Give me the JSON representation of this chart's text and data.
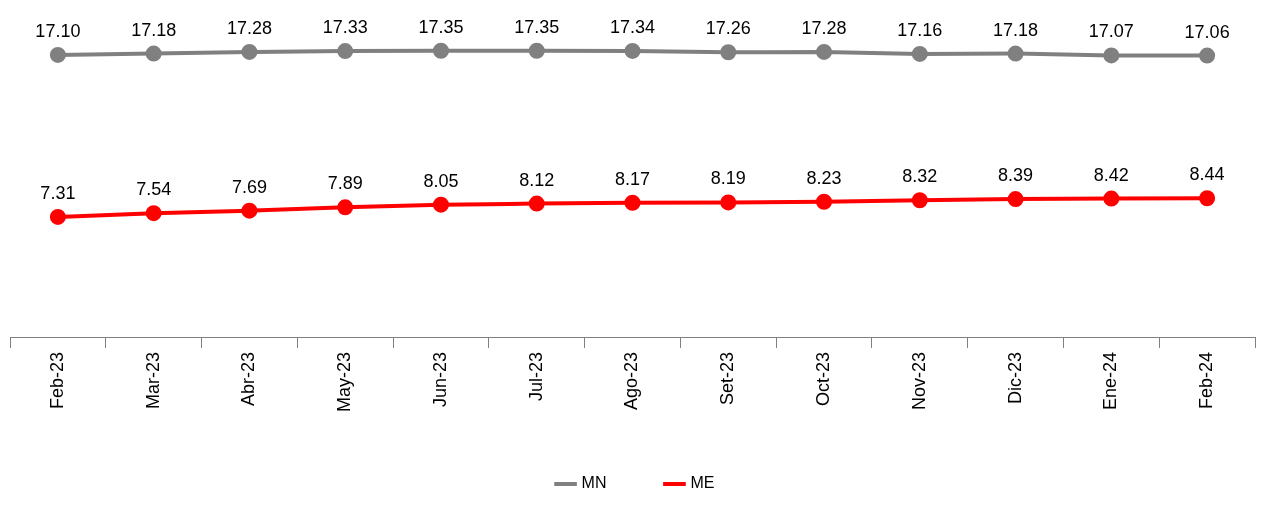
{
  "chart_data": {
    "type": "line",
    "categories": [
      "Feb-23",
      "Mar-23",
      "Abr-23",
      "May-23",
      "Jun-23",
      "Jul-23",
      "Ago-23",
      "Set-23",
      "Oct-23",
      "Nov-23",
      "Dic-23",
      "Ene-24",
      "Feb-24"
    ],
    "series": [
      {
        "name": "MN",
        "color": "#808080",
        "values": [
          17.1,
          17.18,
          17.28,
          17.33,
          17.35,
          17.35,
          17.34,
          17.26,
          17.28,
          17.16,
          17.18,
          17.07,
          17.06
        ],
        "value_labels": [
          "17.10",
          "17.18",
          "17.28",
          "17.33",
          "17.35",
          "17.35",
          "17.34",
          "17.26",
          "17.28",
          "17.16",
          "17.18",
          "17.07",
          "17.06"
        ]
      },
      {
        "name": "ME",
        "color": "#ff0000",
        "values": [
          7.31,
          7.54,
          7.69,
          7.89,
          8.05,
          8.12,
          8.17,
          8.19,
          8.23,
          8.32,
          8.39,
          8.42,
          8.44
        ],
        "value_labels": [
          "7.31",
          "7.54",
          "7.69",
          "7.89",
          "8.05",
          "8.12",
          "8.17",
          "8.19",
          "8.23",
          "8.32",
          "8.39",
          "8.42",
          "8.44"
        ]
      }
    ],
    "tick_labels": "x",
    "marker": "circle",
    "line_style": "solid",
    "grid": false,
    "legend": "bottom"
  }
}
